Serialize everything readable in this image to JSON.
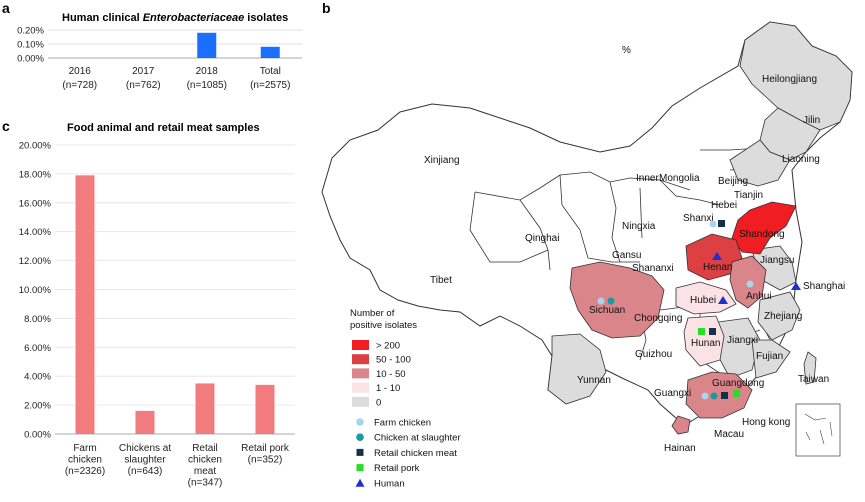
{
  "panels": {
    "a": "a",
    "b": "b",
    "c": "c"
  },
  "chart_data": [
    {
      "type": "bar",
      "title_prefix": "Human clinical ",
      "title_italic": "Enterobacteriaceae",
      "title_suffix": " isolates",
      "categories": [
        "2016",
        "2017",
        "2018",
        "Total"
      ],
      "category_ns": [
        "(n=728)",
        "(n=762)",
        "(n=1085)",
        "(n=2575)"
      ],
      "values": [
        0,
        0,
        0.18,
        0.08
      ],
      "ylim": [
        0,
        0.2
      ],
      "yticks": [
        "0.00%",
        "0.10%",
        "0.20%"
      ],
      "bar_color": "#1a6fff"
    },
    {
      "type": "bar",
      "title": "Food animal and retail meat samples",
      "categories": [
        [
          "Farm",
          "chicken",
          "(n=2326)"
        ],
        [
          "Chickens at",
          "slaughter",
          "(n=643)"
        ],
        [
          "Retail",
          "chicken",
          "meat",
          "(n=347)"
        ],
        [
          "Retail pork",
          "(n=352)"
        ]
      ],
      "values": [
        17.9,
        1.6,
        3.5,
        3.4
      ],
      "ylim": [
        0,
        20
      ],
      "yticks": [
        "0.00%",
        "2.00%",
        "4.00%",
        "6.00%",
        "8.00%",
        "10.00%",
        "12.00%",
        "14.00%",
        "16.00%",
        "18.00%",
        "20.00%"
      ],
      "bar_color": "#f27b7d"
    }
  ],
  "map": {
    "provinces": [
      "Heilongjiang",
      "Jilin",
      "Liaoning",
      "Xinjiang",
      "Inner",
      "Mongolia",
      "Beijing",
      "Tianjin",
      "Hebei",
      "Shanxi",
      "Shandong",
      "Ningxia",
      "Qinghai",
      "Gansu",
      "Henan",
      "Jiangsu",
      "Shananxi",
      "Shanghai",
      "Tibet",
      "Anhui",
      "Hubei",
      "Sichuan",
      "Chongqing",
      "Zhejiang",
      "Hunan",
      "Jiangxi",
      "Guizhou",
      "Fujian",
      "Yunnan",
      "Guangxi",
      "Taiwan",
      "Guangdong",
      "Hong kong",
      "Macau",
      "Hainan"
    ],
    "stray_mark": "%",
    "legend_title": [
      "Number of",
      "positive isolates"
    ],
    "color_scale": [
      {
        "label": "> 200",
        "color": "#f01e23"
      },
      {
        "label": "50 - 100",
        "color": "#dd3f43"
      },
      {
        "label": "10 - 50",
        "color": "#d98589"
      },
      {
        "label": "1 - 10",
        "color": "#fbe2e4"
      },
      {
        "label": "0",
        "color": "#dcdcdc"
      }
    ],
    "markers": [
      {
        "label": "Farm chicken",
        "shape": "circle",
        "color": "#a9d3f2"
      },
      {
        "label": "Chicken at slaughter",
        "shape": "circle",
        "color": "#159ba6"
      },
      {
        "label": "Retail chicken meat",
        "shape": "square",
        "color": "#17304a"
      },
      {
        "label": "Retail pork",
        "shape": "square",
        "color": "#22e022"
      },
      {
        "label": "Human",
        "shape": "triangle",
        "color": "#1f2fd0"
      }
    ]
  }
}
